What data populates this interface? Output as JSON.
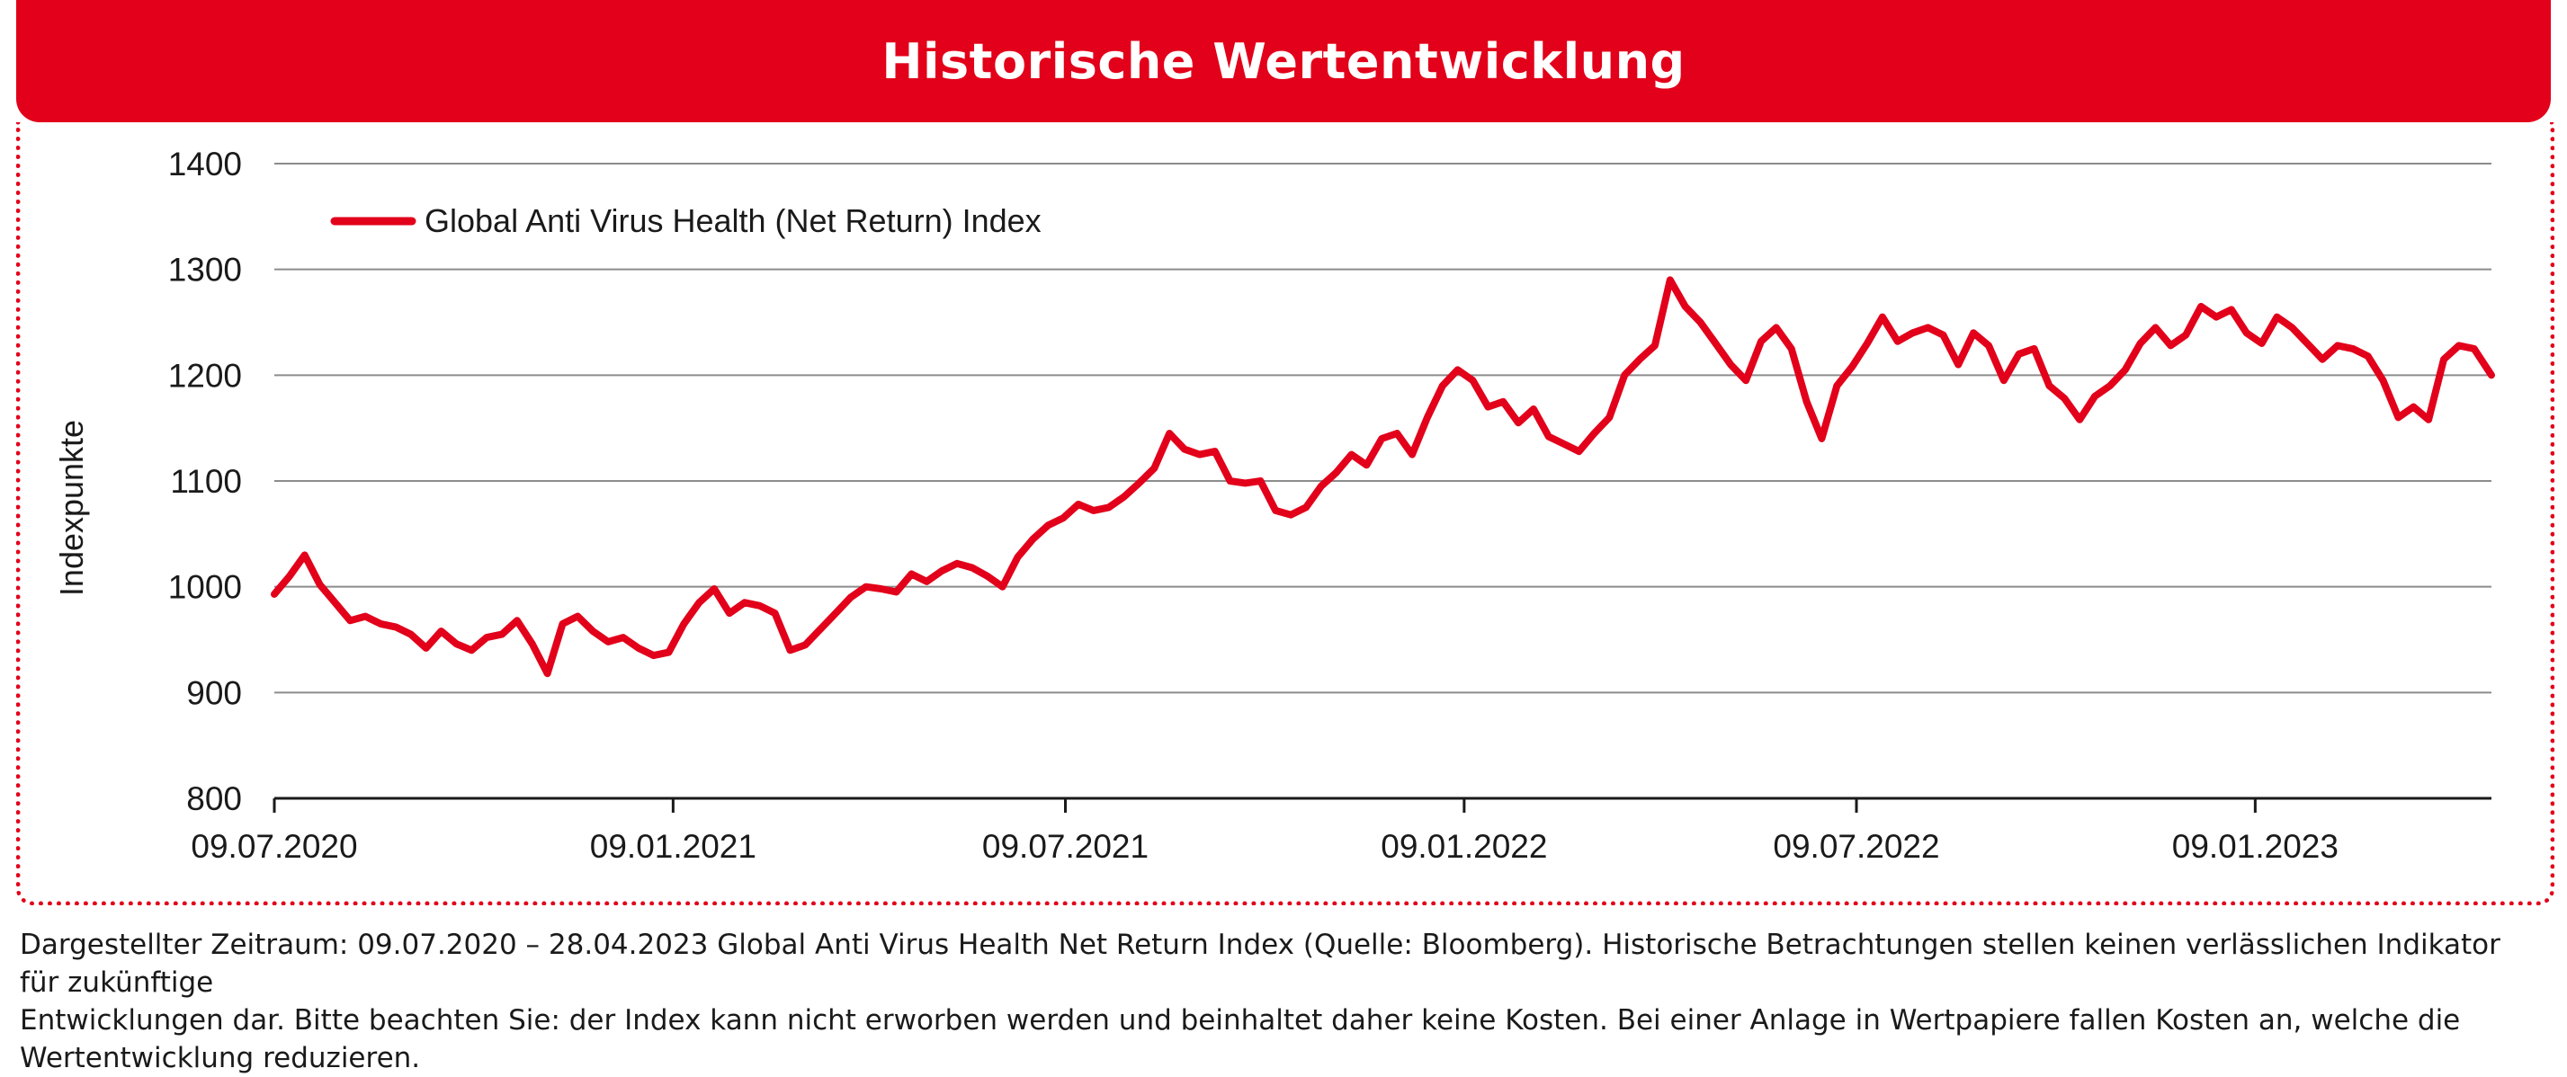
{
  "header": {
    "title": "Historische Wertentwicklung"
  },
  "chart_data": {
    "type": "line",
    "title": "Historische Wertentwicklung",
    "ylabel": "Indexpunkte",
    "xlabel": "",
    "ylim": [
      800,
      1400
    ],
    "yticks": [
      800,
      900,
      1000,
      1100,
      1200,
      1300,
      1400
    ],
    "xlim": [
      "2020-07-09",
      "2023-04-28"
    ],
    "xticks": [
      {
        "date": "2020-07-09",
        "label": "09.07.2020"
      },
      {
        "date": "2021-01-09",
        "label": "09.01.2021"
      },
      {
        "date": "2021-07-09",
        "label": "09.07.2021"
      },
      {
        "date": "2022-01-09",
        "label": "09.01.2022"
      },
      {
        "date": "2022-07-09",
        "label": "09.07.2022"
      },
      {
        "date": "2023-01-09",
        "label": "09.01.2023"
      }
    ],
    "grid": "horizontal",
    "legend": "top-left",
    "series": [
      {
        "name": "Global Anti Virus Health (Net Return) Index",
        "color": "#e2001a",
        "points": [
          [
            "2020-07-09",
            993
          ],
          [
            "2020-07-16",
            1010
          ],
          [
            "2020-07-23",
            1030
          ],
          [
            "2020-07-30",
            1002
          ],
          [
            "2020-08-06",
            985
          ],
          [
            "2020-08-13",
            968
          ],
          [
            "2020-08-20",
            972
          ],
          [
            "2020-08-27",
            965
          ],
          [
            "2020-09-03",
            962
          ],
          [
            "2020-09-10",
            955
          ],
          [
            "2020-09-17",
            942
          ],
          [
            "2020-09-24",
            958
          ],
          [
            "2020-10-01",
            946
          ],
          [
            "2020-10-08",
            940
          ],
          [
            "2020-10-15",
            952
          ],
          [
            "2020-10-22",
            955
          ],
          [
            "2020-10-29",
            968
          ],
          [
            "2020-11-05",
            946
          ],
          [
            "2020-11-12",
            918
          ],
          [
            "2020-11-19",
            965
          ],
          [
            "2020-11-26",
            972
          ],
          [
            "2020-12-03",
            958
          ],
          [
            "2020-12-10",
            948
          ],
          [
            "2020-12-17",
            952
          ],
          [
            "2020-12-24",
            942
          ],
          [
            "2020-12-31",
            935
          ],
          [
            "2021-01-07",
            938
          ],
          [
            "2021-01-14",
            965
          ],
          [
            "2021-01-21",
            985
          ],
          [
            "2021-01-28",
            998
          ],
          [
            "2021-02-04",
            975
          ],
          [
            "2021-02-11",
            985
          ],
          [
            "2021-02-18",
            982
          ],
          [
            "2021-02-25",
            975
          ],
          [
            "2021-03-04",
            940
          ],
          [
            "2021-03-11",
            945
          ],
          [
            "2021-03-18",
            960
          ],
          [
            "2021-03-25",
            975
          ],
          [
            "2021-04-01",
            990
          ],
          [
            "2021-04-08",
            1000
          ],
          [
            "2021-04-15",
            998
          ],
          [
            "2021-04-22",
            995
          ],
          [
            "2021-04-29",
            1012
          ],
          [
            "2021-05-06",
            1005
          ],
          [
            "2021-05-13",
            1015
          ],
          [
            "2021-05-20",
            1022
          ],
          [
            "2021-05-27",
            1018
          ],
          [
            "2021-06-03",
            1010
          ],
          [
            "2021-06-10",
            1000
          ],
          [
            "2021-06-17",
            1028
          ],
          [
            "2021-06-24",
            1045
          ],
          [
            "2021-07-01",
            1058
          ],
          [
            "2021-07-08",
            1065
          ],
          [
            "2021-07-15",
            1078
          ],
          [
            "2021-07-22",
            1072
          ],
          [
            "2021-07-29",
            1075
          ],
          [
            "2021-08-05",
            1085
          ],
          [
            "2021-08-12",
            1098
          ],
          [
            "2021-08-19",
            1112
          ],
          [
            "2021-08-26",
            1145
          ],
          [
            "2021-09-02",
            1130
          ],
          [
            "2021-09-09",
            1125
          ],
          [
            "2021-09-16",
            1128
          ],
          [
            "2021-09-23",
            1100
          ],
          [
            "2021-09-30",
            1098
          ],
          [
            "2021-10-07",
            1100
          ],
          [
            "2021-10-14",
            1072
          ],
          [
            "2021-10-21",
            1068
          ],
          [
            "2021-10-28",
            1075
          ],
          [
            "2021-11-04",
            1095
          ],
          [
            "2021-11-11",
            1108
          ],
          [
            "2021-11-18",
            1125
          ],
          [
            "2021-11-25",
            1115
          ],
          [
            "2021-12-02",
            1140
          ],
          [
            "2021-12-09",
            1145
          ],
          [
            "2021-12-16",
            1125
          ],
          [
            "2021-12-23",
            1160
          ],
          [
            "2021-12-30",
            1190
          ],
          [
            "2022-01-06",
            1205
          ],
          [
            "2022-01-13",
            1195
          ],
          [
            "2022-01-20",
            1170
          ],
          [
            "2022-01-27",
            1175
          ],
          [
            "2022-02-03",
            1155
          ],
          [
            "2022-02-10",
            1168
          ],
          [
            "2022-02-17",
            1142
          ],
          [
            "2022-02-24",
            1135
          ],
          [
            "2022-03-03",
            1128
          ],
          [
            "2022-03-10",
            1145
          ],
          [
            "2022-03-17",
            1160
          ],
          [
            "2022-03-24",
            1200
          ],
          [
            "2022-03-31",
            1215
          ],
          [
            "2022-04-07",
            1228
          ],
          [
            "2022-04-14",
            1290
          ],
          [
            "2022-04-21",
            1265
          ],
          [
            "2022-04-28",
            1250
          ],
          [
            "2022-05-05",
            1230
          ],
          [
            "2022-05-12",
            1210
          ],
          [
            "2022-05-19",
            1195
          ],
          [
            "2022-05-26",
            1232
          ],
          [
            "2022-06-02",
            1245
          ],
          [
            "2022-06-09",
            1225
          ],
          [
            "2022-06-16",
            1175
          ],
          [
            "2022-06-23",
            1140
          ],
          [
            "2022-06-30",
            1190
          ],
          [
            "2022-07-07",
            1208
          ],
          [
            "2022-07-14",
            1230
          ],
          [
            "2022-07-21",
            1255
          ],
          [
            "2022-07-28",
            1232
          ],
          [
            "2022-08-04",
            1240
          ],
          [
            "2022-08-11",
            1245
          ],
          [
            "2022-08-18",
            1238
          ],
          [
            "2022-08-25",
            1210
          ],
          [
            "2022-09-01",
            1240
          ],
          [
            "2022-09-08",
            1228
          ],
          [
            "2022-09-15",
            1195
          ],
          [
            "2022-09-22",
            1220
          ],
          [
            "2022-09-29",
            1225
          ],
          [
            "2022-10-06",
            1190
          ],
          [
            "2022-10-13",
            1178
          ],
          [
            "2022-10-20",
            1158
          ],
          [
            "2022-10-27",
            1180
          ],
          [
            "2022-11-03",
            1190
          ],
          [
            "2022-11-10",
            1205
          ],
          [
            "2022-11-17",
            1230
          ],
          [
            "2022-11-24",
            1245
          ],
          [
            "2022-12-01",
            1228
          ],
          [
            "2022-12-08",
            1238
          ],
          [
            "2022-12-15",
            1265
          ],
          [
            "2022-12-22",
            1255
          ],
          [
            "2022-12-29",
            1262
          ],
          [
            "2023-01-05",
            1240
          ],
          [
            "2023-01-12",
            1230
          ],
          [
            "2023-01-19",
            1255
          ],
          [
            "2023-01-26",
            1245
          ],
          [
            "2023-02-02",
            1230
          ],
          [
            "2023-02-09",
            1215
          ],
          [
            "2023-02-16",
            1228
          ],
          [
            "2023-02-23",
            1225
          ],
          [
            "2023-03-02",
            1218
          ],
          [
            "2023-03-09",
            1195
          ],
          [
            "2023-03-16",
            1160
          ],
          [
            "2023-03-23",
            1170
          ],
          [
            "2023-03-30",
            1158
          ],
          [
            "2023-04-06",
            1215
          ],
          [
            "2023-04-13",
            1228
          ],
          [
            "2023-04-20",
            1225
          ],
          [
            "2023-04-28",
            1200
          ]
        ]
      }
    ]
  },
  "footnote": {
    "line1": "Dargestellter Zeitraum: 09.07.2020 – 28.04.2023 Global Anti Virus Health Net Return Index (Quelle: Bloomberg). Historische Betrachtungen stellen keinen verlässlichen Indikator für zukünftige",
    "line2": "Entwicklungen dar. Bitte beachten Sie: der Index kann nicht erworben werden und beinhaltet daher keine Kosten. Bei einer Anlage in Wertpapiere fallen Kosten an, welche die Wertentwicklung reduzieren."
  }
}
